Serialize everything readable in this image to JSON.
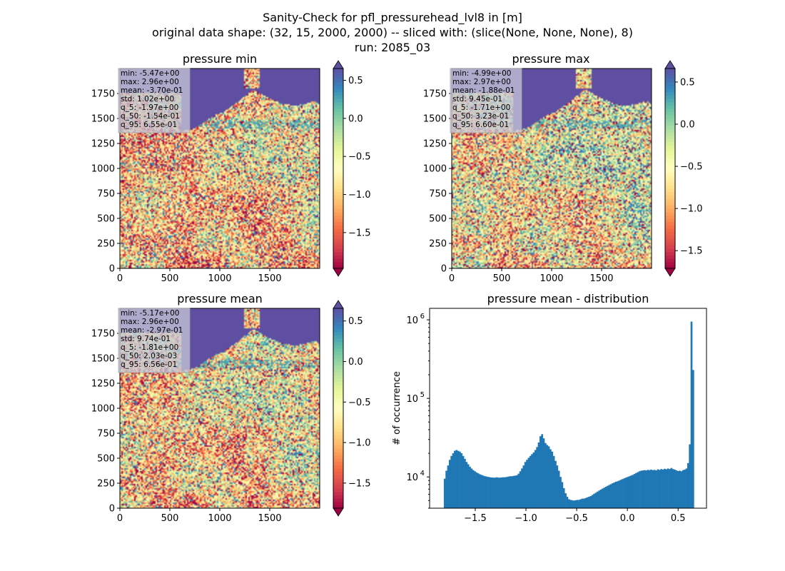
{
  "figure": {
    "suptitle_lines": [
      "Sanity-Check for pfl_pressurehead_lvl8 in [m]",
      "original data shape: (32, 15, 2000, 2000) -- sliced with: (slice(None, None, None), 8)",
      "run: 2085_03"
    ]
  },
  "colors": {
    "colormap": [
      "#9e0142",
      "#d53e4f",
      "#f46d43",
      "#fdae61",
      "#fee08b",
      "#ffffbf",
      "#e6f598",
      "#abdda4",
      "#66c2a5",
      "#3288bd",
      "#5e4fa2"
    ],
    "hist_bar": "#1f77b4"
  },
  "chart_data": [
    {
      "type": "heatmap",
      "title": "pressure min",
      "xlim": [
        0,
        2000
      ],
      "ylim": [
        0,
        2000
      ],
      "xticks": [
        0,
        500,
        1000,
        1500
      ],
      "yticks": [
        0,
        250,
        500,
        750,
        1000,
        1250,
        1500,
        1750
      ],
      "stats_box": [
        "min: -5.47e+00",
        "max: 2.96e+00",
        "mean: -3.70e-01",
        "std: 1.02e+00",
        "q_5: -1.97e+00",
        "q_50: -1.54e-01",
        "q_95: 6.55e-01"
      ],
      "colorbar": {
        "vmin": -1.97,
        "vmax": 0.655,
        "ticks": [
          0.5,
          0.0,
          -0.5,
          -1.0,
          -1.5
        ],
        "tick_labels": [
          "0.5",
          "0.0",
          "−0.5",
          "−1.0",
          "−1.5"
        ],
        "extend": "both"
      }
    },
    {
      "type": "heatmap",
      "title": "pressure max",
      "xlim": [
        0,
        2000
      ],
      "ylim": [
        0,
        2000
      ],
      "xticks": [
        0,
        500,
        1000,
        1500
      ],
      "yticks": [
        0,
        250,
        500,
        750,
        1000,
        1250,
        1500,
        1750
      ],
      "stats_box": [
        "min: -4.99e+00",
        "max: 2.97e+00",
        "mean: -1.88e-01",
        "std: 9.45e-01",
        "q_5: -1.71e+00",
        "q_50: 3.23e-01",
        "q_95: 6.60e-01"
      ],
      "colorbar": {
        "vmin": -1.71,
        "vmax": 0.66,
        "ticks": [
          0.5,
          0.0,
          -0.5,
          -1.0,
          -1.5
        ],
        "tick_labels": [
          "0.5",
          "0.0",
          "−0.5",
          "−1.0",
          "−1.5"
        ],
        "extend": "both"
      }
    },
    {
      "type": "heatmap",
      "title": "pressure mean",
      "xlim": [
        0,
        2000
      ],
      "ylim": [
        0,
        2000
      ],
      "xticks": [
        0,
        500,
        1000,
        1500
      ],
      "yticks": [
        0,
        250,
        500,
        750,
        1000,
        1250,
        1500,
        1750
      ],
      "stats_box": [
        "min: -5.17e+00",
        "max: 2.96e+00",
        "mean: -2.97e-01",
        "std: 9.74e-01",
        "q_5: -1.81e+00",
        "q_50: 2.03e-03",
        "q_95: 6.56e-01"
      ],
      "colorbar": {
        "vmin": -1.81,
        "vmax": 0.656,
        "ticks": [
          0.5,
          0.0,
          -0.5,
          -1.0,
          -1.5
        ],
        "tick_labels": [
          "0.5",
          "0.0",
          "−0.5",
          "−1.0",
          "−1.5"
        ],
        "extend": "both"
      }
    },
    {
      "type": "bar",
      "title": "pressure mean - distribution",
      "ylabel": "# of occurrence",
      "log_y": true,
      "xlim": [
        -1.95,
        0.78
      ],
      "ylim": [
        4000,
        1400000
      ],
      "xticks": [
        -1.5,
        -1.0,
        -0.5,
        0.0,
        0.5
      ],
      "xtick_labels": [
        "−1.5",
        "−1.0",
        "−0.5",
        "0.0",
        "0.5"
      ],
      "yticks": [
        10000,
        100000,
        1000000
      ],
      "ytick_labels": [
        {
          "base": "10",
          "exp": "4"
        },
        {
          "base": "10",
          "exp": "5"
        },
        {
          "base": "10",
          "exp": "6"
        }
      ],
      "bin_start": -1.81,
      "bin_end": 0.656,
      "counts": [
        9500,
        12000,
        14000,
        16500,
        18500,
        20000,
        21500,
        22000,
        21500,
        21000,
        20000,
        18500,
        17000,
        15500,
        14500,
        13500,
        12800,
        12200,
        11800,
        11400,
        11100,
        10800,
        10600,
        10400,
        10200,
        10100,
        10000,
        9900,
        9850,
        9800,
        9800,
        9900,
        9800,
        9800,
        9850,
        9900,
        9900,
        10000,
        10100,
        10200,
        10200,
        10300,
        10400,
        10500,
        11000,
        11800,
        12800,
        14000,
        15500,
        16500,
        17500,
        18500,
        19500,
        20500,
        22000,
        24000,
        27500,
        33000,
        35000,
        31000,
        27000,
        25500,
        24500,
        22500,
        21000,
        18500,
        16000,
        14000,
        12000,
        10000,
        8600,
        7200,
        6200,
        5600,
        5200,
        5100,
        5050,
        5000,
        5050,
        5100,
        5100,
        5200,
        5300,
        5300,
        5400,
        5500,
        5600,
        5700,
        5900,
        6100,
        6300,
        6500,
        6700,
        6900,
        7100,
        7300,
        7500,
        7700,
        7900,
        8100,
        8300,
        8500,
        8700,
        8800,
        9000,
        9200,
        9400,
        9600,
        9800,
        10000,
        10200,
        10400,
        10600,
        10900,
        11200,
        11500,
        11800,
        12000,
        12100,
        12200,
        12100,
        12300,
        12200,
        12400,
        12200,
        12300,
        12100,
        12500,
        12300,
        12600,
        12400,
        12700,
        12500,
        12800,
        12600,
        13000,
        12600,
        12400,
        12100,
        11900,
        12000,
        11800,
        12200,
        12400,
        12800,
        15000,
        26000,
        950000,
        230000
      ]
    }
  ]
}
